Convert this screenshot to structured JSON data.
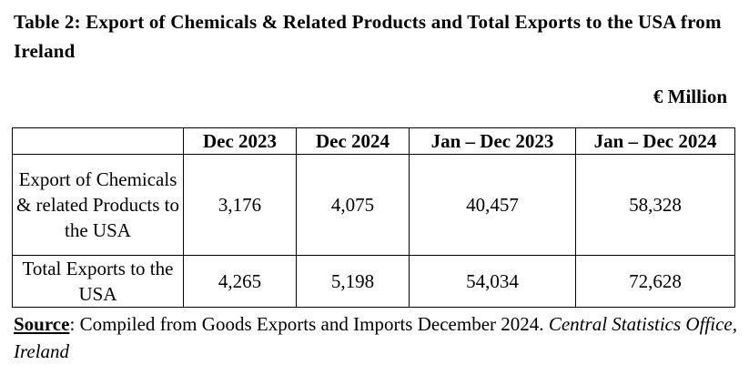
{
  "title": "Table 2: Export of Chemicals & Related Products and Total Exports to the USA from Ireland",
  "unit": "€ Million",
  "table": {
    "columns": [
      "",
      "Dec 2023",
      "Dec 2024",
      "Jan – Dec 2023",
      "Jan – Dec 2024"
    ],
    "rows": [
      {
        "label": "Export of Chemicals & related Products to the USA",
        "values": [
          "3,176",
          "4,075",
          "40,457",
          "58,328"
        ]
      },
      {
        "label": "Total Exports to the USA",
        "values": [
          "4,265",
          "5,198",
          "54,034",
          "72,628"
        ]
      }
    ]
  },
  "source": {
    "label": "Source",
    "separator": ":",
    "text": " Compiled from Goods Exports and Imports December 2024. ",
    "italic": "Central Statistics Office, Ireland"
  }
}
